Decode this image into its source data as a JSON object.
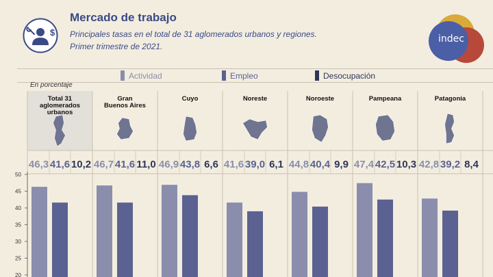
{
  "header": {
    "title": "Mercado de trabajo",
    "subtitle_line1": "Principales tasas en el total de 31 aglomerados urbanos y regiones.",
    "subtitle_line2": "Primer trimestre de 2021.",
    "logo_text": "indec",
    "icon": "worker-money-icon"
  },
  "colors": {
    "actividad": "#8a8eac",
    "empleo": "#5b6291",
    "desocupacion": "#2e3658",
    "background": "#f3ede0",
    "highlight": "#e3dfd9",
    "title": "#3a4a86",
    "logo_gold": "#d9a93a",
    "logo_red": "#b8493a",
    "logo_blue": "#4b5fa6"
  },
  "unit_label": "En porcentaje",
  "chart_data": {
    "type": "bar",
    "categories": [
      "Total 31\naglomerados\nurbanos",
      "Gran\nBuenos Aires",
      "Cuyo",
      "Noreste",
      "Noroeste",
      "Pampeana",
      "Patagonia"
    ],
    "series": [
      {
        "name": "Actividad",
        "values": [
          46.3,
          46.7,
          46.9,
          41.6,
          44.8,
          47.4,
          42.8
        ]
      },
      {
        "name": "Empleo",
        "values": [
          41.6,
          41.6,
          43.8,
          39.0,
          40.4,
          42.5,
          39.2
        ]
      },
      {
        "name": "Desocupación",
        "values": [
          10.2,
          11.0,
          6.6,
          6.1,
          9.9,
          10.3,
          8.4
        ]
      }
    ],
    "value_labels": [
      [
        "46,3",
        "41,6",
        "10,2"
      ],
      [
        "46,7",
        "41,6",
        "11,0"
      ],
      [
        "46,9",
        "43,8",
        "6,6"
      ],
      [
        "41,6",
        "39,0",
        "6,1"
      ],
      [
        "44,8",
        "40,4",
        "9,9"
      ],
      [
        "47,4",
        "42,5",
        "10,3"
      ],
      [
        "42,8",
        "39,2",
        "8,4"
      ]
    ],
    "y_ticks": [
      20,
      25,
      30,
      35,
      40,
      45,
      50
    ],
    "ylim": [
      20,
      50
    ],
    "legend_position": "top",
    "grid": false
  }
}
